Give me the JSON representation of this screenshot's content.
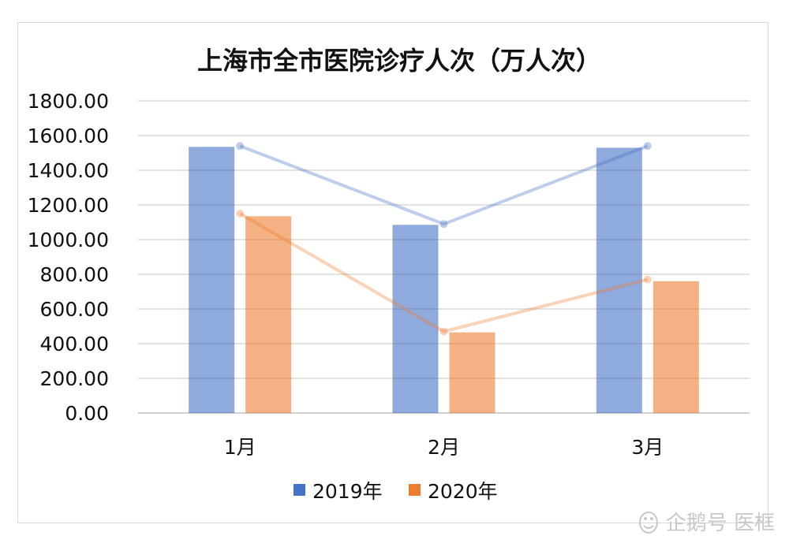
{
  "chart_data": {
    "type": "bar",
    "title": "上海市全市医院诊疗人次（万人次）",
    "categories": [
      "1月",
      "2月",
      "3月"
    ],
    "series": [
      {
        "name": "2019年",
        "values": [
          1535,
          1085,
          1530
        ],
        "line_values": [
          1540,
          1090,
          1540
        ],
        "color": "#4472c4"
      },
      {
        "name": "2020年",
        "values": [
          1135,
          465,
          760
        ],
        "line_values": [
          1150,
          470,
          770
        ],
        "color": "#ed7d31"
      }
    ],
    "yticks": [
      "0.00",
      "200.00",
      "400.00",
      "600.00",
      "800.00",
      "1000.00",
      "1200.00",
      "1400.00",
      "1600.00",
      "1800.00"
    ],
    "ylim": [
      0,
      1800
    ],
    "legend_position": "bottom"
  },
  "watermark": {
    "text": "企鹅号 医框"
  }
}
